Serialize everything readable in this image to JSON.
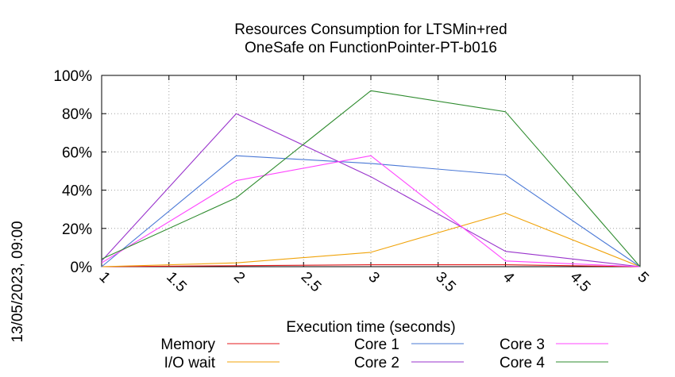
{
  "chart_data": {
    "type": "line",
    "title_lines": [
      "Resources Consumption for LTSMin+red",
      "OneSafe on FunctionPointer-PT-b016"
    ],
    "xlabel": "Execution time (seconds)",
    "ylabel": "",
    "side_label": "13/05/2023, 09:00",
    "xlim": [
      1,
      5
    ],
    "ylim": [
      0,
      100
    ],
    "x_ticks": [
      1,
      1.5,
      2,
      2.5,
      3,
      3.5,
      4,
      4.5,
      5
    ],
    "x_tick_labels": [
      "1",
      "1.5",
      "2",
      "2.5",
      "3",
      "3.5",
      "4",
      "4.5",
      "5"
    ],
    "y_ticks": [
      0,
      20,
      40,
      60,
      80,
      100
    ],
    "y_tick_labels": [
      "0%",
      "20%",
      "40%",
      "60%",
      "80%",
      "100%"
    ],
    "grid": true,
    "legend_placement": "bottom",
    "x": [
      1,
      2,
      3,
      4,
      5
    ],
    "series": [
      {
        "name": "Memory",
        "color": "#e41a1c",
        "values": [
          0,
          0.5,
          1,
          1,
          0
        ]
      },
      {
        "name": "I/O wait",
        "color": "#f0a30a",
        "values": [
          0,
          2,
          7.5,
          28,
          0
        ]
      },
      {
        "name": "Core 1",
        "color": "#4a78d6",
        "values": [
          0,
          58,
          54,
          48,
          0
        ]
      },
      {
        "name": "Core 2",
        "color": "#9933cc",
        "values": [
          3,
          80,
          47,
          8,
          0
        ]
      },
      {
        "name": "Core 3",
        "color": "#ff44ff",
        "values": [
          2,
          45,
          58,
          3,
          0
        ]
      },
      {
        "name": "Core 4",
        "color": "#2e8b2e",
        "values": [
          4,
          36,
          92,
          81,
          0
        ]
      }
    ]
  }
}
